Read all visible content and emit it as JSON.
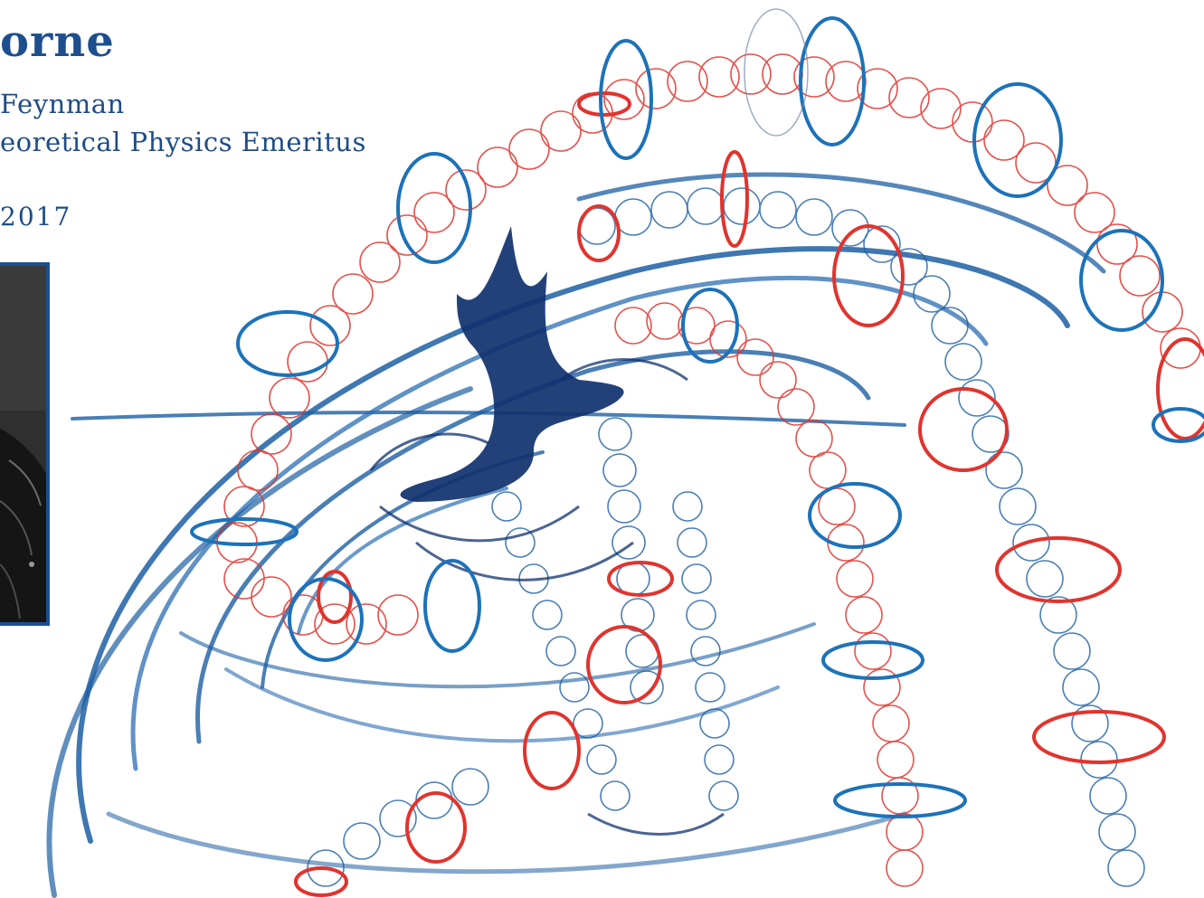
{
  "header": {
    "name_fragment": "orne",
    "line1": "Feynman",
    "line2": "eoretical Physics Emeritus",
    "year": "2017"
  },
  "colors": {
    "title": "#1d4f8f",
    "text": "#1f4c86",
    "ink_blue": "#1d5fa3",
    "ink_dark": "#10316e",
    "ink_red": "#e0342e",
    "photo_border": "#1d4f8f"
  },
  "icons": {
    "artwork": "black-hole-watercolor-illustration",
    "photo": "portrait-photo-leather-jacket"
  }
}
